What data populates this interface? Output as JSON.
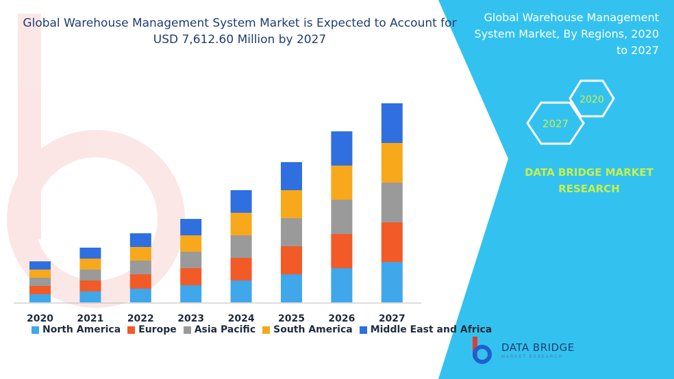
{
  "page": {
    "title": "Global Warehouse Management System Market is Expected to Account for USD 7,612.60 Million by 2027",
    "side_title": "Global Warehouse Management System Market, By Regions, 2020 to 2027",
    "hex_labels": [
      "2027",
      "2020"
    ],
    "brand_text": "DATA BRIDGE MARKET RESEARCH",
    "logo_text": "DATA BRIDGE",
    "logo_sub": "MARKET RESEARCH",
    "colors": {
      "panel": "#33c2ef",
      "title": "#1f3c73",
      "accent": "#c8f04a"
    }
  },
  "chart_data": {
    "type": "bar",
    "stacked": true,
    "categories": [
      "2020",
      "2021",
      "2022",
      "2023",
      "2024",
      "2025",
      "2026",
      "2027"
    ],
    "series": [
      {
        "name": "North America",
        "color": "#3fa7ea",
        "values": [
          12,
          16,
          20,
          25,
          32,
          41,
          50,
          59
        ]
      },
      {
        "name": "Europe",
        "color": "#f25a27",
        "values": [
          12,
          16,
          21,
          25,
          33,
          41,
          50,
          58
        ]
      },
      {
        "name": "Asia Pacific",
        "color": "#9a9a9a",
        "values": [
          12,
          16,
          20,
          24,
          33,
          41,
          50,
          58
        ]
      },
      {
        "name": "South America",
        "color": "#f7a81b",
        "values": [
          12,
          16,
          20,
          24,
          33,
          41,
          50,
          58
        ]
      },
      {
        "name": "Middle East and Africa",
        "color": "#2f6fe0",
        "values": [
          12,
          16,
          20,
          24,
          33,
          41,
          50,
          58
        ]
      }
    ],
    "legend_position": "bottom",
    "grid": false
  }
}
